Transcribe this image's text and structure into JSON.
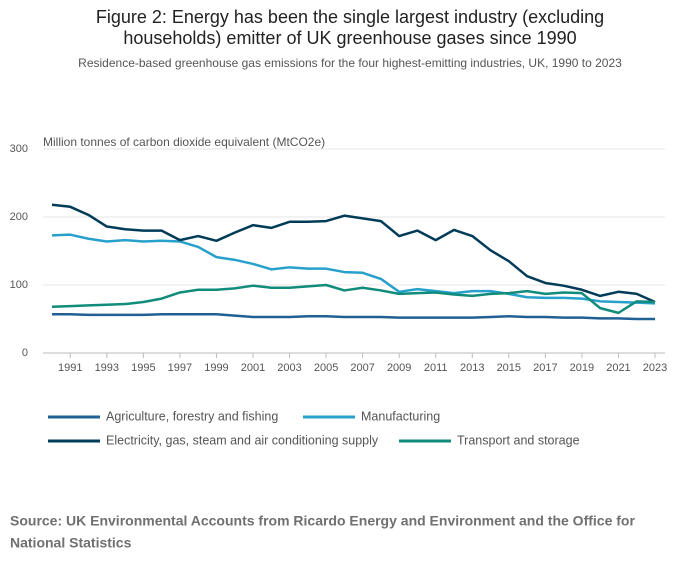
{
  "chart_data": {
    "type": "line",
    "title_lines": [
      "Figure 2: Energy has been the single largest industry (excluding",
      "households) emitter of UK greenhouse gases since 1990"
    ],
    "subtitle": "Residence-based greenhouse gas emissions for the four highest-emitting industries, UK, 1990 to 2023",
    "y_label": "Million tonnes of carbon dioxide equivalent (MtCO2e)",
    "x": [
      1990,
      1991,
      1992,
      1993,
      1994,
      1995,
      1996,
      1997,
      1998,
      1999,
      2000,
      2001,
      2002,
      2003,
      2004,
      2005,
      2006,
      2007,
      2008,
      2009,
      2010,
      2011,
      2012,
      2013,
      2014,
      2015,
      2016,
      2017,
      2018,
      2019,
      2020,
      2021,
      2022,
      2023
    ],
    "xlim": [
      1990,
      2023
    ],
    "xticks": [
      1991,
      1993,
      1995,
      1997,
      1999,
      2001,
      2003,
      2005,
      2007,
      2009,
      2011,
      2013,
      2015,
      2017,
      2019,
      2021,
      2023
    ],
    "ylim": [
      0,
      300
    ],
    "yticks": [
      0,
      100,
      200,
      300
    ],
    "grid": true,
    "series": [
      {
        "name": "Agriculture, forestry and fishing",
        "color": "#206095",
        "values": [
          57,
          57,
          56,
          56,
          56,
          56,
          57,
          57,
          57,
          57,
          55,
          53,
          53,
          53,
          54,
          54,
          53,
          53,
          53,
          52,
          52,
          52,
          52,
          52,
          53,
          54,
          53,
          53,
          52,
          52,
          51,
          51,
          50,
          50
        ]
      },
      {
        "name": "Manufacturing",
        "color": "#27a0cc",
        "values": [
          173,
          174,
          168,
          164,
          166,
          164,
          165,
          164,
          156,
          141,
          137,
          131,
          123,
          126,
          124,
          124,
          119,
          118,
          109,
          90,
          94,
          91,
          88,
          91,
          91,
          87,
          82,
          81,
          81,
          80,
          76,
          75,
          74,
          73
        ]
      },
      {
        "name": "Electricity, gas, steam and air conditioning supply",
        "color": "#003c57",
        "values": [
          218,
          215,
          203,
          186,
          182,
          180,
          180,
          166,
          172,
          165,
          177,
          188,
          184,
          193,
          193,
          194,
          202,
          198,
          194,
          172,
          180,
          166,
          181,
          172,
          151,
          135,
          113,
          103,
          99,
          93,
          84,
          90,
          87,
          75
        ]
      },
      {
        "name": "Transport and storage",
        "color": "#118c7b",
        "values": [
          68,
          69,
          70,
          71,
          72,
          75,
          80,
          89,
          93,
          93,
          95,
          99,
          96,
          96,
          98,
          100,
          92,
          96,
          92,
          87,
          88,
          89,
          86,
          84,
          87,
          88,
          91,
          87,
          89,
          88,
          66,
          59,
          76,
          75
        ]
      }
    ],
    "source": [
      "Source: UK Environmental Accounts from Ricardo Energy and Environment and the Office for",
      "National Statistics"
    ]
  }
}
